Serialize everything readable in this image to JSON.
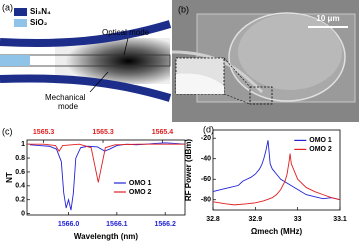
{
  "panels": {
    "a": {
      "label": "(a)",
      "legend": [
        "Si₃N₄",
        "SiO₂"
      ],
      "optical_mode": "Optical mode",
      "mechanical_mode": [
        "Mechanical",
        "mode"
      ]
    },
    "b": {
      "label": "(b)",
      "scale_bar": "10 μm"
    },
    "c": {
      "label": "(c)"
    },
    "d": {
      "label": "(d)"
    }
  },
  "chart_data": [
    {
      "type": "line",
      "x_label": "Wavelength (nm)",
      "y_label": "NT",
      "xlim": [
        1565.914,
        1566.241
      ],
      "xticks": [
        {
          "value": 1566.0,
          "label": "1566.0"
        },
        {
          "value": 1566.1,
          "label": "1566.1"
        },
        {
          "value": 1566.2,
          "label": "1566.2"
        }
      ],
      "xtick_color": "#2323d8",
      "x2lim": [
        1565.286,
        1565.419
      ],
      "x2ticks": [
        {
          "value": 1565.3,
          "label": "1565.3"
        },
        {
          "value": 1565.35,
          "label": "1565.3"
        },
        {
          "value": 1565.4,
          "label": "1565.4"
        }
      ],
      "x2tick_color": "#e02020",
      "ylim": [
        -0.02,
        1.06
      ],
      "yticks": [
        0,
        0.2,
        0.4,
        0.6,
        0.8,
        1
      ],
      "legend": "lower right",
      "series": [
        {
          "name": "OMO 1",
          "color": "#2323d8",
          "x": [
            1565.92,
            1565.94,
            1565.96,
            1565.975,
            1565.985,
            1565.99,
            1565.995,
            1566.0,
            1566.005,
            1566.01,
            1566.015,
            1566.025,
            1566.04,
            1566.06,
            1566.075,
            1566.085,
            1566.1,
            1566.12,
            1566.14,
            1566.16,
            1566.18,
            1566.2,
            1566.22,
            1566.24
          ],
          "values": [
            0.99,
            0.98,
            0.97,
            0.93,
            0.75,
            0.3,
            0.08,
            0.2,
            0.05,
            0.3,
            0.8,
            0.95,
            0.97,
            0.96,
            0.9,
            0.93,
            0.98,
            1.0,
            0.99,
            1.0,
            1.01,
            1.02,
            1.01,
            1.0
          ]
        },
        {
          "name": "OMO 2",
          "color": "#e02020",
          "axis": "x2",
          "x": [
            1565.286,
            1565.3,
            1565.31,
            1565.313,
            1565.316,
            1565.33,
            1565.34,
            1565.343,
            1565.346,
            1565.349,
            1565.352,
            1565.36,
            1565.38,
            1565.4,
            1565.419
          ],
          "values": [
            1.0,
            1.0,
            0.98,
            0.9,
            0.98,
            1.0,
            0.95,
            0.7,
            0.45,
            0.7,
            0.95,
            0.99,
            1.0,
            1.0,
            1.0
          ]
        }
      ]
    },
    {
      "type": "line",
      "x_label": "Ωmech (MHz)",
      "y_label": "RF Power (dBm)",
      "xlim": [
        32.8,
        33.1
      ],
      "xticks": [
        32.8,
        32.9,
        33,
        33.1
      ],
      "ylim": [
        -90,
        -12
      ],
      "yticks": [
        -80,
        -60,
        -40,
        -20
      ],
      "legend": "upper right",
      "series": [
        {
          "name": "OMO 1",
          "color": "#2323d8",
          "x": [
            32.8,
            32.82,
            32.84,
            32.86,
            32.87,
            32.88,
            32.89,
            32.9,
            32.91,
            32.915,
            32.92,
            32.925,
            32.93,
            32.935,
            32.94,
            32.95,
            32.96,
            32.98,
            33.0,
            33.02,
            33.04,
            33.06,
            33.08,
            33.1
          ],
          "values": [
            -72,
            -70,
            -68,
            -66,
            -62,
            -60,
            -58,
            -55,
            -50,
            -46,
            -40,
            -32,
            -22,
            -45,
            -50,
            -55,
            -60,
            -65,
            -70,
            -75,
            -77,
            -79,
            -78,
            -80
          ]
        },
        {
          "name": "OMO 2",
          "color": "#e02020",
          "x": [
            32.8,
            32.83,
            32.85,
            32.88,
            32.9,
            32.92,
            32.94,
            32.95,
            32.96,
            32.97,
            32.975,
            32.98,
            32.982,
            32.985,
            32.99,
            33.0,
            33.02,
            33.04,
            33.06,
            33.08,
            33.1
          ],
          "values": [
            -82,
            -84,
            -85,
            -84,
            -83,
            -81,
            -78,
            -75,
            -70,
            -62,
            -55,
            -42,
            -35,
            -45,
            -50,
            -60,
            -68,
            -72,
            -75,
            -78,
            -80
          ]
        }
      ]
    }
  ]
}
